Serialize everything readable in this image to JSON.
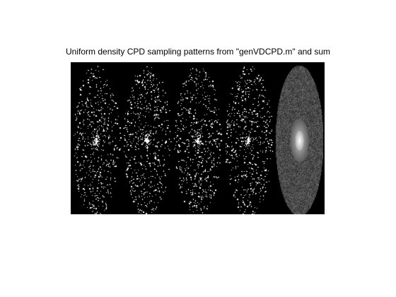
{
  "figure": {
    "title": "Uniform density CPD sampling patterns from \"genVDCPD.m\" and sum"
  },
  "panels": [
    {
      "name": "pattern-1",
      "kind": "binary"
    },
    {
      "name": "pattern-2",
      "kind": "binary"
    },
    {
      "name": "pattern-3",
      "kind": "binary"
    },
    {
      "name": "pattern-4",
      "kind": "binary"
    },
    {
      "name": "sum",
      "kind": "sum"
    }
  ],
  "colors": {
    "figure_background": "#ffffff",
    "image_background": "#000000",
    "sample_point": "#ffffff",
    "sum_gray": "#5a5a5a"
  }
}
